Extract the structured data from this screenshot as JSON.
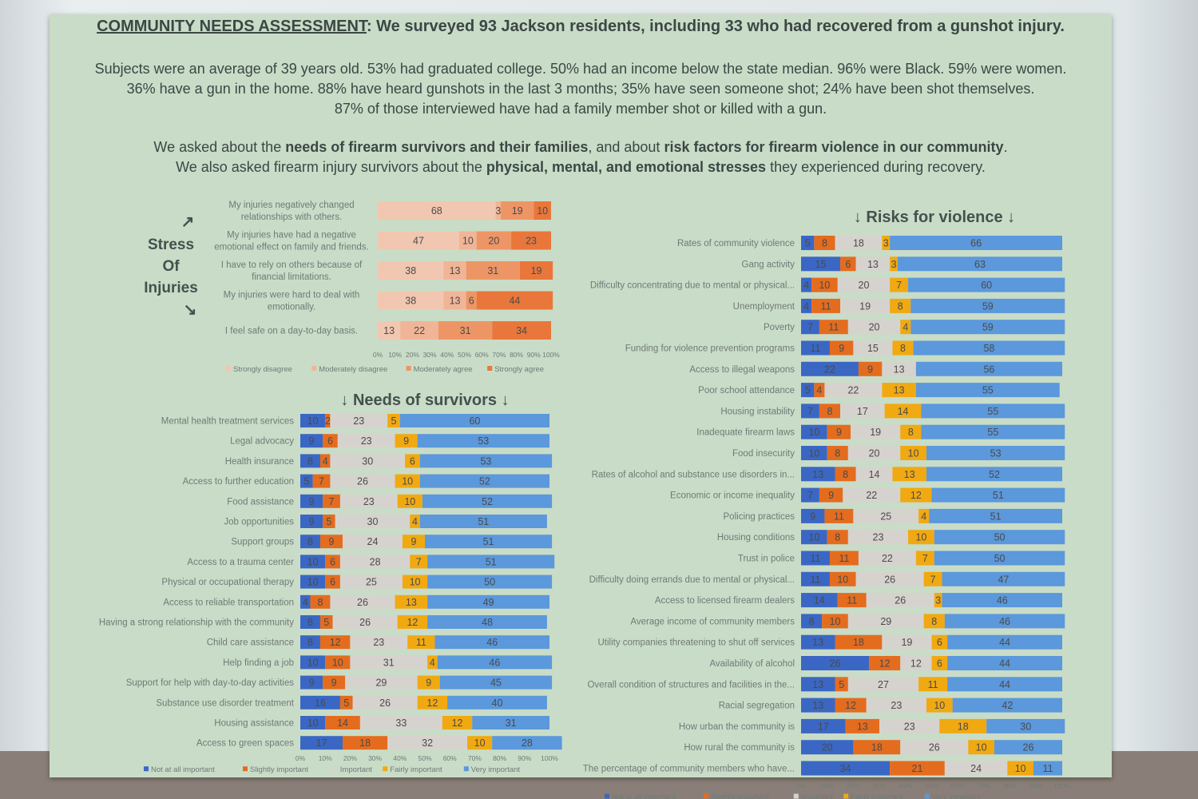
{
  "headline": {
    "label": "COMMUNITY NEEDS ASSESSMENT",
    "text": ": We surveyed 93 Jackson residents, including 33 who had recovered from a gunshot injury."
  },
  "summary": {
    "line1": "Subjects were an average of 39 years old. 53% had graduated college. 50% had an income below the state median. 96% were Black. 59% were women.",
    "line2": "36% have a gun in the home. 88% have heard gunshots in the last 3 months; 35% have seen someone shot; 24% have been shot themselves.",
    "line3": "87% of those interviewed have had a family member shot or killed with a gun."
  },
  "ask": {
    "l1_a": "We asked about the ",
    "l1_b": "needs of firearm survivors and their families",
    "l1_c": ", and about ",
    "l1_d": "risk factors for firearm violence in our community",
    "l1_e": ".",
    "l2_a": "We also asked firearm injury survivors about the ",
    "l2_b": "physical, mental, and emotional stresses",
    "l2_c": " they experienced during recovery."
  },
  "colors": {
    "strongly_disagree": "#f2c7b1",
    "moderately_disagree": "#f0b596",
    "moderately_agree": "#ee9565",
    "strongly_agree": "#e9773b",
    "not_at_all_important": "#3a67c4",
    "slightly_important": "#e46c1f",
    "important": "#d6d3cf",
    "fairly_important": "#f1a912",
    "very_important": "#5b98dc"
  },
  "chart_data": [
    {
      "type": "bar",
      "orientation": "horizontal",
      "stacked": "percent",
      "title": "Stress Of Injuries",
      "title_words": [
        "Stress",
        "Of",
        "Injuries"
      ],
      "arrow_up": "↗",
      "arrow_down": "↘",
      "categories": [
        "My injuries negatively changed relationships with others.",
        "My injuries have had a negative emotional effect on family and friends.",
        "I have to rely on others because of financial limitations.",
        "My injuries were hard to deal with emotionally.",
        "I feel safe on a day-to-day basis."
      ],
      "category_lines": [
        [
          "My injuries negatively changed",
          "relationships with others."
        ],
        [
          "My injuries have had a negative",
          "emotional effect on family and friends."
        ],
        [
          "I have to rely on others because of",
          "financial limitations."
        ],
        [
          "My injuries were hard to deal with",
          "emotionally."
        ],
        [
          "I feel safe on a day-to-day basis."
        ]
      ],
      "series": [
        {
          "name": "Strongly disagree",
          "values": [
            68,
            47,
            38,
            38,
            13
          ]
        },
        {
          "name": "Moderately disagree",
          "values": [
            3,
            10,
            13,
            13,
            22
          ]
        },
        {
          "name": "Moderately agree",
          "values": [
            19,
            20,
            31,
            6,
            31
          ]
        },
        {
          "name": "Strongly agree",
          "values": [
            10,
            23,
            19,
            44,
            34
          ]
        }
      ],
      "xticks": [
        "0%",
        "10%",
        "20%",
        "30%",
        "40%",
        "50%",
        "60%",
        "70%",
        "80%",
        "90%",
        "100%"
      ],
      "legend_position": "bottom"
    },
    {
      "type": "bar",
      "orientation": "horizontal",
      "stacked": "percent",
      "title": "Needs of survivors",
      "title_arrow": "↓",
      "categories": [
        "Mental health treatment services",
        "Legal advocacy",
        "Health insurance",
        "Access to further education",
        "Food assistance",
        "Job opportunities",
        "Support groups",
        "Access to a trauma center",
        "Physical or occupational therapy",
        "Access to reliable transportation",
        "Having a strong relationship with the community",
        "Child care assistance",
        "Help finding a job",
        "Support for help with day-to-day activities",
        "Substance use disorder treatment",
        "Housing assistance",
        "Access to green spaces"
      ],
      "series": [
        {
          "name": "Not at all important",
          "values": [
            10,
            9,
            8,
            5,
            9,
            9,
            8,
            10,
            10,
            4,
            8,
            8,
            10,
            9,
            16,
            10,
            17
          ]
        },
        {
          "name": "Slightly important",
          "values": [
            2,
            6,
            4,
            7,
            7,
            5,
            9,
            6,
            6,
            8,
            5,
            12,
            10,
            9,
            5,
            14,
            18
          ]
        },
        {
          "name": "Important",
          "values": [
            23,
            23,
            30,
            26,
            23,
            30,
            24,
            28,
            25,
            26,
            26,
            23,
            31,
            29,
            26,
            33,
            32
          ]
        },
        {
          "name": "Fairly important",
          "values": [
            5,
            9,
            6,
            10,
            10,
            4,
            9,
            7,
            10,
            13,
            12,
            11,
            4,
            9,
            12,
            12,
            10
          ]
        },
        {
          "name": "Very important",
          "values": [
            60,
            53,
            53,
            52,
            52,
            51,
            51,
            51,
            50,
            49,
            48,
            46,
            46,
            45,
            40,
            31,
            28
          ]
        }
      ],
      "xticks": [
        "0%",
        "10%",
        "20%",
        "30%",
        "40%",
        "50%",
        "60%",
        "70%",
        "80%",
        "90%",
        "100%"
      ],
      "legend_position": "bottom"
    },
    {
      "type": "bar",
      "orientation": "horizontal",
      "stacked": "percent",
      "title": "Risks for violence",
      "title_arrow": "↓",
      "categories": [
        "Rates of community violence",
        "Gang activity",
        "Difficulty concentrating due to mental or physical...",
        "Unemployment",
        "Poverty",
        "Funding for violence prevention programs",
        "Access to illegal weapons",
        "Poor school attendance",
        "Housing instability",
        "Inadequate firearm laws",
        "Food insecurity",
        "Rates of alcohol and substance use disorders in...",
        "Economic or income inequality",
        "Policing practices",
        "Housing conditions",
        "Trust in police",
        "Difficulty doing errands due to mental or physical...",
        "Access to licensed firearm dealers",
        "Average income of community members",
        "Utility companies threatening to shut off services",
        "Availability of alcohol",
        "Overall condition of structures and facilities in the...",
        "Racial segregation",
        "How urban the community is",
        "How rural the community is",
        "The percentage of community members who have..."
      ],
      "series": [
        {
          "name": "Not at all important",
          "values": [
            5,
            15,
            4,
            4,
            7,
            11,
            22,
            5,
            7,
            10,
            10,
            13,
            7,
            9,
            10,
            11,
            11,
            14,
            8,
            13,
            26,
            13,
            13,
            17,
            20,
            34
          ]
        },
        {
          "name": "Slightly important",
          "values": [
            8,
            6,
            10,
            11,
            11,
            9,
            9,
            4,
            8,
            9,
            8,
            8,
            9,
            11,
            8,
            11,
            10,
            11,
            10,
            18,
            12,
            5,
            12,
            13,
            18,
            21
          ]
        },
        {
          "name": "Important",
          "values": [
            18,
            13,
            20,
            19,
            20,
            15,
            13,
            22,
            17,
            19,
            20,
            14,
            22,
            25,
            23,
            22,
            26,
            26,
            29,
            19,
            12,
            27,
            23,
            23,
            26,
            24
          ]
        },
        {
          "name": "Fairly important",
          "values": [
            3,
            3,
            7,
            8,
            4,
            8,
            0,
            13,
            14,
            8,
            10,
            13,
            12,
            4,
            10,
            7,
            7,
            3,
            8,
            6,
            6,
            11,
            10,
            18,
            10,
            10
          ]
        },
        {
          "name": "Very important",
          "values": [
            66,
            63,
            60,
            59,
            59,
            58,
            56,
            55,
            55,
            55,
            53,
            52,
            51,
            51,
            50,
            50,
            47,
            46,
            46,
            44,
            44,
            44,
            42,
            30,
            26,
            11
          ]
        }
      ],
      "xticks": [
        "0%",
        "10%",
        "20%",
        "30%",
        "40%",
        "50%",
        "60%",
        "70%",
        "80%",
        "90%",
        "100%"
      ],
      "legend_position": "bottom"
    }
  ]
}
